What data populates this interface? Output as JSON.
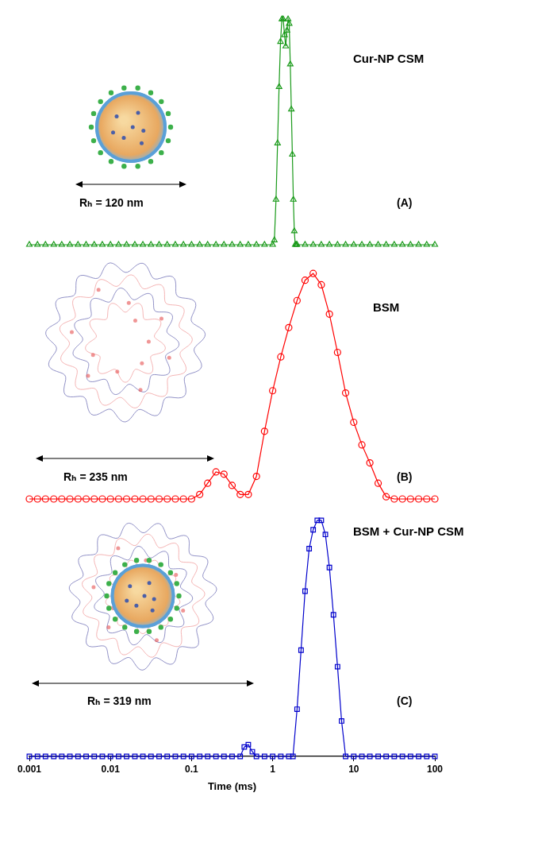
{
  "chart_data": [
    {
      "type": "line",
      "title": "Cur-NP CSM",
      "annotations": [
        "Rₕ = 120 nm",
        "(A)"
      ],
      "x": [
        0.001,
        0.00126,
        0.00158,
        0.002,
        0.00251,
        0.00316,
        0.00398,
        0.00501,
        0.00631,
        0.00794,
        0.01,
        0.0126,
        0.0158,
        0.02,
        0.0251,
        0.0316,
        0.0398,
        0.0501,
        0.0631,
        0.0794,
        0.1,
        0.126,
        0.158,
        0.2,
        0.251,
        0.316,
        0.398,
        0.501,
        0.631,
        0.794,
        1,
        1.05,
        1.1,
        1.15,
        1.2,
        1.25,
        1.3,
        1.35,
        1.4,
        1.45,
        1.5,
        1.55,
        1.6,
        1.65,
        1.7,
        1.75,
        1.8,
        1.85,
        1.9,
        1.95,
        2,
        2.51,
        3.16,
        3.98,
        5.01,
        6.31,
        7.94,
        10,
        12.6,
        15.8,
        20,
        25.1,
        31.6,
        39.8,
        50.1,
        63.1,
        79.4,
        100
      ],
      "values": [
        0,
        0,
        0,
        0,
        0,
        0,
        0,
        0,
        0,
        0,
        0,
        0,
        0,
        0,
        0,
        0,
        0,
        0,
        0,
        0,
        0,
        0,
        0,
        0,
        0,
        0,
        0,
        0,
        0,
        0,
        0,
        0.02,
        0.2,
        0.45,
        0.7,
        0.9,
        1.0,
        1.0,
        0.93,
        0.88,
        0.95,
        1.0,
        0.98,
        0.8,
        0.6,
        0.4,
        0.2,
        0.06,
        0,
        0,
        0,
        0,
        0,
        0,
        0,
        0,
        0,
        0,
        0,
        0,
        0,
        0,
        0,
        0,
        0,
        0,
        0,
        0
      ],
      "color": "#1a9a1a",
      "marker": "triangle",
      "log": "x",
      "xlim": [
        0.001,
        100
      ],
      "ylim": [
        0,
        1.05
      ],
      "tick_labels": false,
      "grid": false
    },
    {
      "type": "line",
      "title": "BSM",
      "annotations": [
        "Rₕ = 235 nm",
        "(B)"
      ],
      "x": [
        0.001,
        0.00126,
        0.00158,
        0.002,
        0.00251,
        0.00316,
        0.00398,
        0.00501,
        0.00631,
        0.00794,
        0.01,
        0.0126,
        0.0158,
        0.02,
        0.0251,
        0.0316,
        0.0398,
        0.0501,
        0.0631,
        0.0794,
        0.1,
        0.126,
        0.158,
        0.2,
        0.251,
        0.316,
        0.398,
        0.501,
        0.631,
        0.794,
        1,
        1.26,
        1.58,
        2,
        2.51,
        3.16,
        3.98,
        5.01,
        6.31,
        7.94,
        10,
        12.6,
        15.8,
        20,
        25.1,
        31.6,
        39.8,
        50.1,
        63.1,
        79.4,
        100
      ],
      "values": [
        0,
        0,
        0,
        0,
        0,
        0,
        0,
        0,
        0,
        0,
        0,
        0,
        0,
        0,
        0,
        0,
        0,
        0,
        0,
        0,
        0,
        0.02,
        0.07,
        0.12,
        0.11,
        0.06,
        0.02,
        0.02,
        0.1,
        0.3,
        0.48,
        0.63,
        0.76,
        0.88,
        0.97,
        1.0,
        0.95,
        0.82,
        0.65,
        0.47,
        0.34,
        0.24,
        0.16,
        0.07,
        0.01,
        0,
        0,
        0,
        0,
        0,
        0
      ],
      "color": "#ff0000",
      "marker": "circle",
      "log": "x",
      "xlim": [
        0.001,
        100
      ],
      "ylim": [
        0,
        1.05
      ],
      "tick_labels": false,
      "grid": false
    },
    {
      "type": "line",
      "title": "BSM + Cur-NP CSM",
      "annotations": [
        "Rₕ = 319 nm",
        "(C)"
      ],
      "x": [
        0.001,
        0.00126,
        0.00158,
        0.002,
        0.00251,
        0.00316,
        0.00398,
        0.00501,
        0.00631,
        0.00794,
        0.01,
        0.0126,
        0.0158,
        0.02,
        0.0251,
        0.0316,
        0.0398,
        0.0501,
        0.0631,
        0.0794,
        0.1,
        0.126,
        0.158,
        0.2,
        0.251,
        0.316,
        0.398,
        0.447,
        0.501,
        0.562,
        0.631,
        0.794,
        1,
        1.26,
        1.58,
        1.78,
        2,
        2.24,
        2.51,
        2.82,
        3.16,
        3.55,
        3.98,
        4.47,
        5.01,
        5.62,
        6.31,
        7.08,
        7.94,
        10,
        12.6,
        15.8,
        20,
        25.1,
        31.6,
        39.8,
        50.1,
        63.1,
        79.4,
        100
      ],
      "values": [
        0,
        0,
        0,
        0,
        0,
        0,
        0,
        0,
        0,
        0,
        0,
        0,
        0,
        0,
        0,
        0,
        0,
        0,
        0,
        0,
        0,
        0,
        0,
        0,
        0,
        0,
        0,
        0.04,
        0.05,
        0.02,
        0,
        0,
        0,
        0,
        0,
        0,
        0.2,
        0.45,
        0.7,
        0.88,
        0.96,
        1.0,
        1.0,
        0.94,
        0.8,
        0.6,
        0.38,
        0.15,
        0,
        0,
        0,
        0,
        0,
        0,
        0,
        0,
        0,
        0,
        0,
        0
      ],
      "color": "#0000cc",
      "marker": "square",
      "log": "x",
      "xlim": [
        0.001,
        100
      ],
      "ylim": [
        0,
        1.05
      ],
      "xticks": [
        0.001,
        0.01,
        0.1,
        1,
        10,
        100
      ],
      "x_label": "Time (ms)",
      "tick_labels": "x",
      "grid": false
    }
  ]
}
